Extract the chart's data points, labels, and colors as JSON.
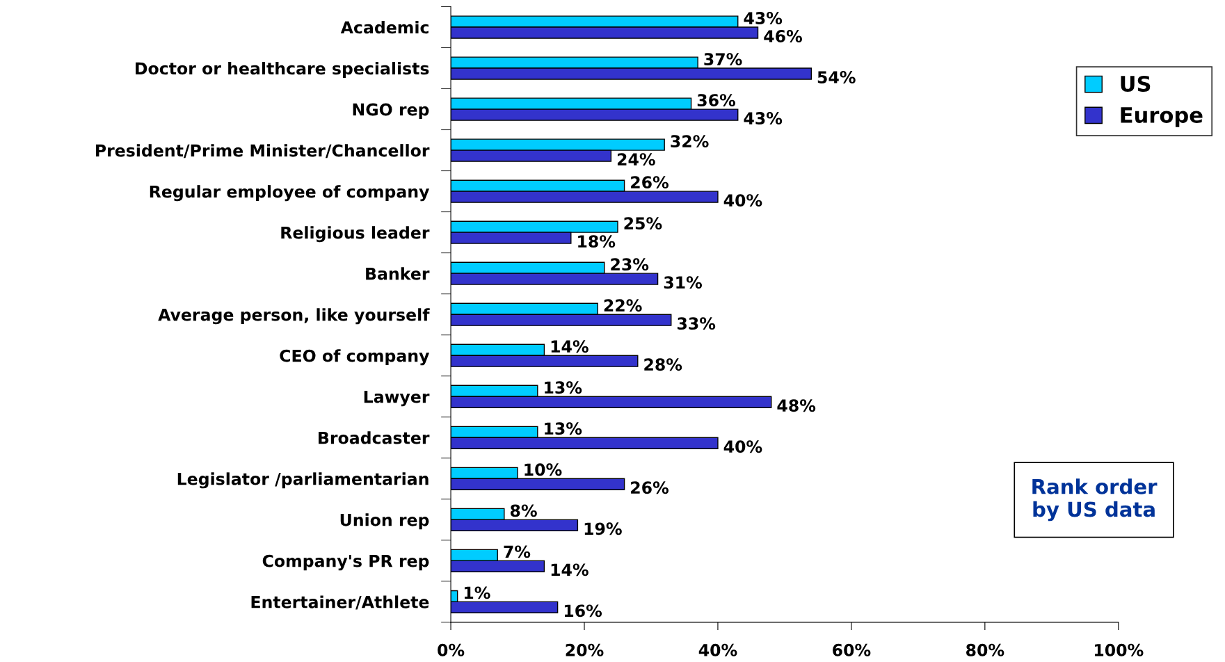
{
  "chart_data": {
    "type": "bar",
    "orientation": "horizontal",
    "categories": [
      "Academic",
      "Doctor or healthcare specialists",
      "NGO rep",
      "President/Prime Minister/Chancellor",
      "Regular employee of company",
      "Religious leader",
      "Banker",
      "Average person, like yourself",
      "CEO of company",
      "Lawyer",
      "Broadcaster",
      "Legislator /parliamentarian",
      "Union rep",
      "Company's PR rep",
      "Entertainer/Athlete"
    ],
    "series": [
      {
        "name": "US",
        "color": "#00ccff",
        "values": [
          43,
          37,
          36,
          32,
          26,
          25,
          23,
          22,
          14,
          13,
          13,
          10,
          8,
          7,
          1
        ],
        "value_labels": [
          "43%",
          "37%",
          "36%",
          "32%",
          "26%",
          "25%",
          "23%",
          "22%",
          "14%",
          "13%",
          "13%",
          "10%",
          "8%",
          "7%",
          "1%"
        ]
      },
      {
        "name": "Europe",
        "color": "#3333cc",
        "values": [
          46,
          54,
          43,
          24,
          40,
          18,
          31,
          33,
          28,
          48,
          40,
          26,
          19,
          14,
          16
        ],
        "value_labels": [
          "46%",
          "54%",
          "43%",
          "24%",
          "40%",
          "18%",
          "31%",
          "33%",
          "28%",
          "48%",
          "40%",
          "26%",
          "19%",
          "14%",
          "16%"
        ]
      }
    ],
    "xlim": [
      0,
      100
    ],
    "xticks": [
      {
        "value": 0,
        "label": "0%"
      },
      {
        "value": 20,
        "label": "20%"
      },
      {
        "value": 40,
        "label": "40%"
      },
      {
        "value": 60,
        "label": "60%"
      },
      {
        "value": 80,
        "label": "80%"
      },
      {
        "value": 100,
        "label": "100%"
      }
    ],
    "legend": "right",
    "grid": false,
    "annotations": [
      "Rank order\nby US data"
    ]
  }
}
